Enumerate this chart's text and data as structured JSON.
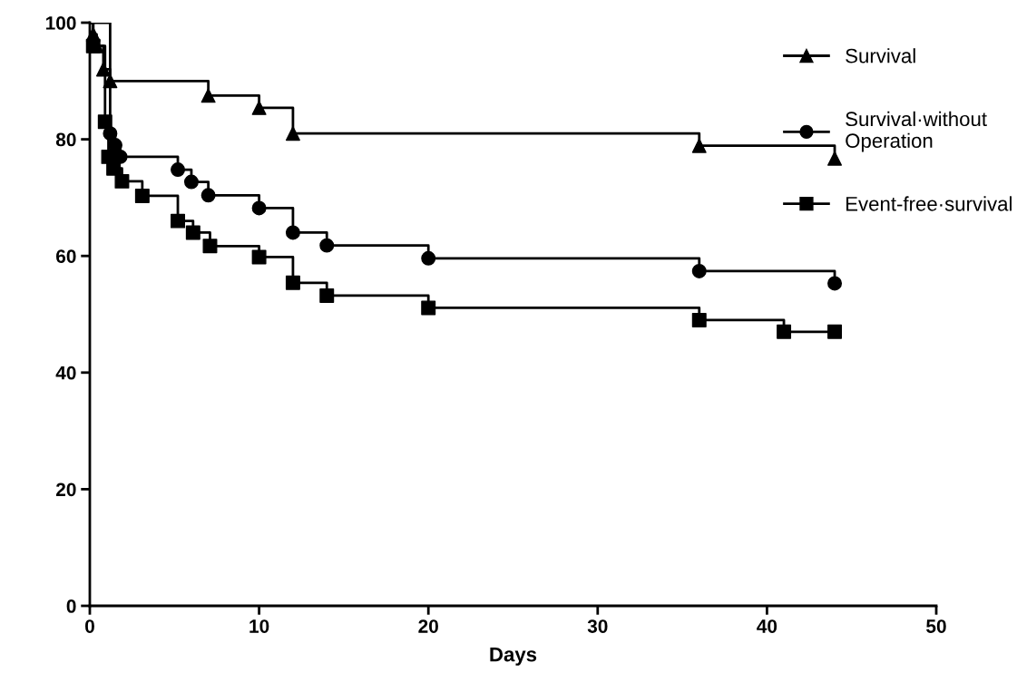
{
  "chart_data": {
    "type": "step",
    "xlabel": "Days",
    "xlim": [
      0,
      50
    ],
    "xticks": [
      0,
      10,
      20,
      30,
      40,
      50
    ],
    "ylim": [
      0,
      100
    ],
    "yticks": [
      0,
      20,
      40,
      60,
      80,
      100
    ],
    "grid": false,
    "legend": "top right",
    "line_style": "solid",
    "series": [
      {
        "name": "Survival",
        "color": "#000000",
        "marker": "triangle",
        "x": [
          0,
          0.2,
          0.4,
          0.8,
          1.2,
          7,
          10,
          12,
          36,
          44
        ],
        "values": [
          100,
          98,
          96,
          92,
          90,
          87.5,
          85.4,
          81,
          78.9,
          76.7
        ]
      },
      {
        "name": "Survival·without\nOperation",
        "color": "#000000",
        "marker": "circle",
        "x": [
          0,
          1.2,
          1.5,
          1.8,
          5.2,
          6,
          7,
          10,
          12,
          14,
          20,
          36,
          44
        ],
        "values": [
          100,
          81,
          79,
          77,
          74.8,
          72.7,
          70.4,
          68.2,
          64,
          61.8,
          59.6,
          57.4,
          55.3
        ]
      },
      {
        "name": "Event-free·survival",
        "color": "#000000",
        "marker": "square",
        "x": [
          0,
          0.2,
          0.9,
          1.1,
          1.4,
          1.9,
          3.1,
          5.2,
          6.1,
          7.1,
          10,
          12,
          14,
          20,
          36,
          41,
          44
        ],
        "values": [
          100,
          96,
          83,
          77,
          75,
          72.8,
          70.3,
          66,
          64,
          61.7,
          59.8,
          55.4,
          53.2,
          51.1,
          49,
          47,
          47
        ]
      }
    ]
  }
}
